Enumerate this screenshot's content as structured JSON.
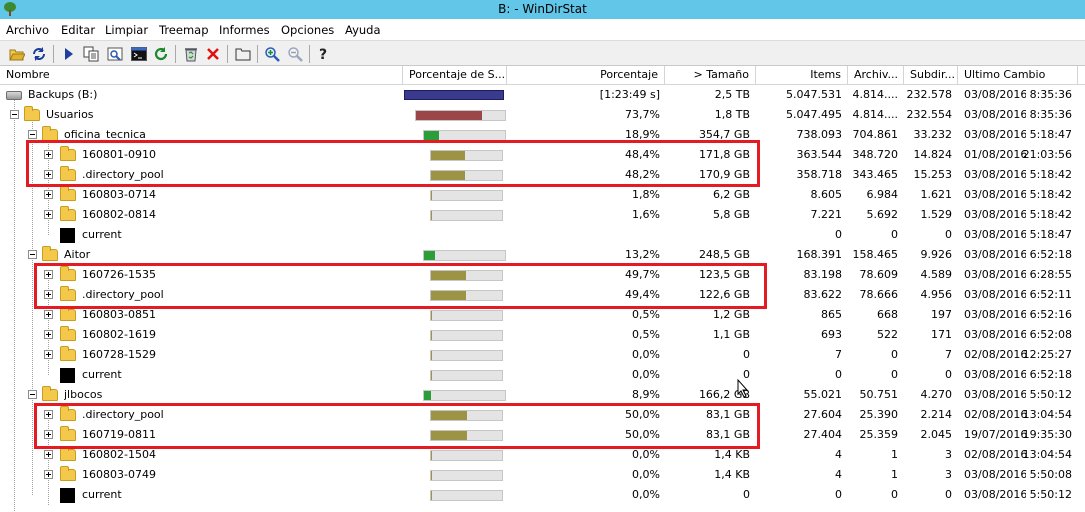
{
  "window": {
    "title": "B: - WinDirStat"
  },
  "menu": [
    "Archivo",
    "Editar",
    "Limpiar",
    "Treemap",
    "Informes",
    "Opciones",
    "Ayuda"
  ],
  "toolbar": [
    {
      "icon": "open-folder-icon"
    },
    {
      "icon": "refresh-icon"
    },
    {
      "icon": "play-icon"
    },
    {
      "icon": "copy-icon"
    },
    {
      "icon": "explorer-icon"
    },
    {
      "icon": "command-prompt-icon"
    },
    {
      "icon": "refresh-green-icon"
    },
    {
      "icon": "recycle-bin-icon"
    },
    {
      "icon": "delete-icon"
    },
    {
      "icon": "properties-icon"
    },
    {
      "icon": "zoom-in-icon"
    },
    {
      "icon": "zoom-out-icon"
    },
    {
      "icon": "help-icon"
    }
  ],
  "columns": [
    "Nombre",
    "Porcentaje de S...",
    "Porcentaje",
    "> Tamaño",
    "Items",
    "Archiv...",
    "Subdir...",
    "Ultimo Cambio"
  ],
  "colors": {
    "bar_level1": "#9b4747",
    "bar_level2": "#2b9e3a",
    "bar_level3": "#9c9444",
    "root_bar": "#3a3a8e",
    "highlight": "#e41b23"
  },
  "rows": [
    {
      "name": "Backups (B:)",
      "icon": "drive-icon",
      "level": 0,
      "expander": "minus",
      "bar_type": "root",
      "fill_percent": 100,
      "percent": "[1:23:49 s]",
      "size": "2,5 TB",
      "items": "5.047.531",
      "files": "4.814....",
      "subdirs": "232.578",
      "date": "03/08/2016",
      "time": "8:35:36"
    },
    {
      "name": "Usuarios",
      "icon": "folder-icon",
      "level": 1,
      "expander": "minus",
      "bar_type": "level1",
      "fill_percent": 73.7,
      "percent": "73,7%",
      "size": "1,8 TB",
      "items": "5.047.495",
      "files": "4.814....",
      "subdirs": "232.554",
      "date": "03/08/2016",
      "time": "8:35:36"
    },
    {
      "name": "oficina_tecnica",
      "icon": "folder-icon",
      "level": 2,
      "expander": "minus",
      "bar_type": "level2",
      "fill_percent": 18.9,
      "percent": "18,9%",
      "size": "354,7 GB",
      "items": "738.093",
      "files": "704.861",
      "subdirs": "33.232",
      "date": "03/08/2016",
      "time": "5:18:47"
    },
    {
      "name": "160801-0910",
      "icon": "folder-icon",
      "level": 3,
      "expander": "plus",
      "bar_type": "level3",
      "fill_percent": 48.4,
      "percent": "48,4%",
      "size": "171,8 GB",
      "items": "363.544",
      "files": "348.720",
      "subdirs": "14.824",
      "date": "01/08/2016",
      "time": "21:03:56"
    },
    {
      "name": ".directory_pool",
      "icon": "folder-icon",
      "level": 3,
      "expander": "plus",
      "bar_type": "level3",
      "fill_percent": 48.2,
      "percent": "48,2%",
      "size": "170,9 GB",
      "items": "358.718",
      "files": "343.465",
      "subdirs": "15.253",
      "date": "03/08/2016",
      "time": "5:18:42"
    },
    {
      "name": "160803-0714",
      "icon": "folder-icon",
      "level": 3,
      "expander": "plus",
      "bar_type": "level3",
      "fill_percent": 1.8,
      "percent": "1,8%",
      "size": "6,2 GB",
      "items": "8.605",
      "files": "6.984",
      "subdirs": "1.621",
      "date": "03/08/2016",
      "time": "5:18:42"
    },
    {
      "name": "160802-0814",
      "icon": "folder-icon",
      "level": 3,
      "expander": "plus",
      "bar_type": "level3",
      "fill_percent": 1.6,
      "percent": "1,6%",
      "size": "5,8 GB",
      "items": "7.221",
      "files": "5.692",
      "subdirs": "1.529",
      "date": "03/08/2016",
      "time": "5:18:42"
    },
    {
      "name": "current",
      "icon": "file-icon",
      "level": 3,
      "expander": "none",
      "bar_type": "none",
      "fill_percent": 0,
      "percent": "",
      "size": "",
      "items": "0",
      "files": "0",
      "subdirs": "0",
      "date": "03/08/2016",
      "time": "5:18:47"
    },
    {
      "name": "Aitor",
      "icon": "folder-icon",
      "level": 2,
      "expander": "minus",
      "bar_type": "level2",
      "fill_percent": 13.2,
      "percent": "13,2%",
      "size": "248,5 GB",
      "items": "168.391",
      "files": "158.465",
      "subdirs": "9.926",
      "date": "03/08/2016",
      "time": "6:52:18"
    },
    {
      "name": "160726-1535",
      "icon": "folder-icon",
      "level": 3,
      "expander": "plus",
      "bar_type": "level3",
      "fill_percent": 49.7,
      "percent": "49,7%",
      "size": "123,5 GB",
      "items": "83.198",
      "files": "78.609",
      "subdirs": "4.589",
      "date": "03/08/2016",
      "time": "6:28:55"
    },
    {
      "name": ".directory_pool",
      "icon": "folder-icon",
      "level": 3,
      "expander": "plus",
      "bar_type": "level3",
      "fill_percent": 49.4,
      "percent": "49,4%",
      "size": "122,6 GB",
      "items": "83.622",
      "files": "78.666",
      "subdirs": "4.956",
      "date": "03/08/2016",
      "time": "6:52:11"
    },
    {
      "name": "160803-0851",
      "icon": "folder-icon",
      "level": 3,
      "expander": "plus",
      "bar_type": "level3",
      "fill_percent": 0.5,
      "percent": "0,5%",
      "size": "1,2 GB",
      "items": "865",
      "files": "668",
      "subdirs": "197",
      "date": "03/08/2016",
      "time": "6:52:16"
    },
    {
      "name": "160802-1619",
      "icon": "folder-icon",
      "level": 3,
      "expander": "plus",
      "bar_type": "level3",
      "fill_percent": 0.5,
      "percent": "0,5%",
      "size": "1,1 GB",
      "items": "693",
      "files": "522",
      "subdirs": "171",
      "date": "03/08/2016",
      "time": "6:52:08"
    },
    {
      "name": "160728-1529",
      "icon": "folder-icon",
      "level": 3,
      "expander": "plus",
      "bar_type": "level3",
      "fill_percent": 0,
      "percent": "0,0%",
      "size": "0",
      "items": "7",
      "files": "0",
      "subdirs": "7",
      "date": "02/08/2016",
      "time": "12:25:27"
    },
    {
      "name": "current",
      "icon": "file-icon",
      "level": 3,
      "expander": "none",
      "bar_type": "level3",
      "fill_percent": 0,
      "percent": "0,0%",
      "size": "0",
      "items": "0",
      "files": "0",
      "subdirs": "0",
      "date": "03/08/2016",
      "time": "6:52:18"
    },
    {
      "name": "jlbocos",
      "icon": "folder-icon",
      "level": 2,
      "expander": "minus",
      "bar_type": "level2",
      "fill_percent": 8.9,
      "percent": "8,9%",
      "size": "166,2 GB",
      "items": "55.021",
      "files": "50.751",
      "subdirs": "4.270",
      "date": "03/08/2016",
      "time": "5:50:12"
    },
    {
      "name": ".directory_pool",
      "icon": "folder-icon",
      "level": 3,
      "expander": "plus",
      "bar_type": "level3",
      "fill_percent": 50,
      "percent": "50,0%",
      "size": "83,1 GB",
      "items": "27.604",
      "files": "25.390",
      "subdirs": "2.214",
      "date": "02/08/2016",
      "time": "13:04:54"
    },
    {
      "name": "160719-0811",
      "icon": "folder-icon",
      "level": 3,
      "expander": "plus",
      "bar_type": "level3",
      "fill_percent": 50,
      "percent": "50,0%",
      "size": "83,1 GB",
      "items": "27.404",
      "files": "25.359",
      "subdirs": "2.045",
      "date": "19/07/2016",
      "time": "19:35:30"
    },
    {
      "name": "160802-1504",
      "icon": "folder-icon",
      "level": 3,
      "expander": "plus",
      "bar_type": "level3",
      "fill_percent": 0,
      "percent": "0,0%",
      "size": "1,4 KB",
      "items": "4",
      "files": "1",
      "subdirs": "3",
      "date": "02/08/2016",
      "time": "13:04:54"
    },
    {
      "name": "160803-0749",
      "icon": "folder-icon",
      "level": 3,
      "expander": "plus",
      "bar_type": "level3",
      "fill_percent": 0,
      "percent": "0,0%",
      "size": "1,4 KB",
      "items": "4",
      "files": "1",
      "subdirs": "3",
      "date": "03/08/2016",
      "time": "5:50:08"
    },
    {
      "name": "current",
      "icon": "file-icon",
      "level": 3,
      "expander": "none",
      "bar_type": "level3",
      "fill_percent": 0,
      "percent": "0,0%",
      "size": "0",
      "items": "0",
      "files": "0",
      "subdirs": "0",
      "date": "03/08/2016",
      "time": "5:50:12"
    }
  ]
}
